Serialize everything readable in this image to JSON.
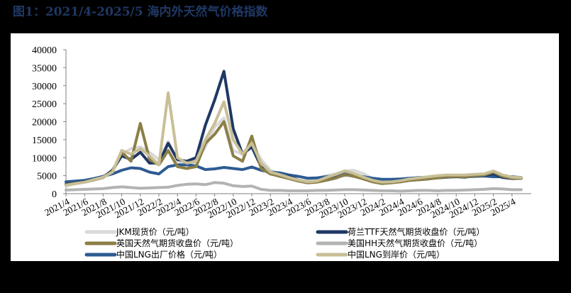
{
  "title": "图1：2021/4-2025/5 海内外天然气价格指数",
  "colors": {
    "background": "#000000",
    "panel": "#ffffff",
    "title": "#1f3864",
    "axis": "#808080"
  },
  "chart_data": {
    "type": "line",
    "title": "图1：2021/4-2025/5 海内外天然气价格指数",
    "xlabel": "",
    "ylabel": "元/吨",
    "ylim": [
      0,
      40000
    ],
    "yticks": [
      0,
      5000,
      10000,
      15000,
      20000,
      25000,
      30000,
      35000,
      40000
    ],
    "xtick_labels": [
      "2021/4",
      "2021/6",
      "2021/8",
      "2021/10",
      "2021/12",
      "2022/2",
      "2022/4",
      "2022/6",
      "2022/8",
      "2022/10",
      "2022/12",
      "2023/2",
      "2023/4",
      "2023/6",
      "2023/8",
      "2023/10",
      "2023/12",
      "2024/2",
      "2024/4",
      "2024/6",
      "2024/8",
      "2024/10",
      "2024/12",
      "2025/2",
      "2025/4"
    ],
    "grid": false,
    "legend_position": "bottom",
    "x": [
      "2021/4",
      "2021/5",
      "2021/6",
      "2021/7",
      "2021/8",
      "2021/9",
      "2021/10",
      "2021/11",
      "2021/12",
      "2022/1",
      "2022/2",
      "2022/3",
      "2022/4",
      "2022/5",
      "2022/6",
      "2022/7",
      "2022/8",
      "2022/9",
      "2022/10",
      "2022/11",
      "2022/12",
      "2023/1",
      "2023/2",
      "2023/3",
      "2023/4",
      "2023/5",
      "2023/6",
      "2023/7",
      "2023/8",
      "2023/9",
      "2023/10",
      "2023/11",
      "2023/12",
      "2024/1",
      "2024/2",
      "2024/3",
      "2024/4",
      "2024/5",
      "2024/6",
      "2024/7",
      "2024/8",
      "2024/9",
      "2024/10",
      "2024/11",
      "2024/12",
      "2025/1",
      "2025/2",
      "2025/3",
      "2025/4",
      "2025/5"
    ],
    "series": [
      {
        "name": "JKM现货价（元/吨）",
        "color": "#d9d9d9",
        "values": [
          2200,
          2700,
          3200,
          3800,
          4700,
          6000,
          11000,
          12500,
          13000,
          11500,
          9500,
          14500,
          9000,
          8200,
          8800,
          13000,
          18500,
          21000,
          12000,
          11000,
          14500,
          9500,
          6500,
          5500,
          4500,
          3800,
          3500,
          4300,
          5000,
          5500,
          6300,
          6500,
          5600,
          4200,
          3300,
          3200,
          3400,
          4000,
          4400,
          4600,
          4900,
          5100,
          5100,
          5000,
          5100,
          5000,
          5200,
          4600,
          4300,
          4300
        ]
      },
      {
        "name": "荷兰TTF天然气期货收盘价（元/吨）",
        "color": "#1f3864",
        "values": [
          2600,
          3000,
          3300,
          3900,
          4600,
          6500,
          10500,
          9500,
          11500,
          8500,
          8500,
          14000,
          9500,
          9000,
          10000,
          19000,
          26000,
          34000,
          18000,
          11000,
          13000,
          7500,
          5500,
          5000,
          4800,
          3800,
          3200,
          3300,
          3800,
          4400,
          5200,
          5000,
          4300,
          3500,
          3000,
          3100,
          3300,
          3700,
          3900,
          4100,
          4400,
          4600,
          4700,
          4600,
          5000,
          5100,
          5500,
          4500,
          4200,
          4300
        ]
      },
      {
        "name": "英国天然气期货收盘价（元/吨）",
        "color": "#8b7f47",
        "values": [
          2500,
          2900,
          3200,
          3800,
          4500,
          6200,
          11500,
          9000,
          19500,
          9500,
          8000,
          12000,
          7500,
          7000,
          7500,
          14000,
          16500,
          20000,
          10500,
          9000,
          16000,
          7000,
          5500,
          4800,
          4200,
          3500,
          3000,
          3200,
          3700,
          4300,
          5300,
          4800,
          4100,
          3300,
          2800,
          3000,
          3300,
          3700,
          3900,
          4100,
          4400,
          4700,
          4800,
          4700,
          5000,
          5200,
          6000,
          4800,
          4300,
          4300
        ]
      },
      {
        "name": "美国HH天然气期货收盘价（元/吨）",
        "color": "#b3b3b3",
        "values": [
          1000,
          1100,
          1200,
          1300,
          1400,
          1700,
          1900,
          1700,
          1500,
          1600,
          1700,
          1800,
          2300,
          2600,
          2700,
          2500,
          3100,
          2900,
          2200,
          2000,
          2100,
          1200,
          900,
          900,
          800,
          800,
          800,
          900,
          900,
          1000,
          1100,
          1100,
          1000,
          900,
          800,
          800,
          700,
          800,
          900,
          900,
          800,
          900,
          900,
          1000,
          1100,
          1200,
          1400,
          1300,
          1100,
          1100
        ]
      },
      {
        "name": "中国LNG出厂价格（元/吨）",
        "color": "#2e5b92",
        "values": [
          3300,
          3500,
          3700,
          4200,
          4800,
          5500,
          6500,
          7200,
          7000,
          6000,
          5500,
          7500,
          8000,
          8000,
          7700,
          6700,
          6900,
          7300,
          7000,
          6700,
          7400,
          6500,
          6000,
          5800,
          5200,
          4800,
          4300,
          4400,
          4700,
          5000,
          5500,
          5300,
          4700,
          4300,
          4000,
          4000,
          4100,
          4300,
          4500,
          4600,
          4700,
          4800,
          4800,
          4700,
          4800,
          4900,
          4700,
          4700,
          4700,
          4500
        ]
      },
      {
        "name": "中国LNG到岸价（元/吨）",
        "color": "#c9bf96",
        "values": [
          2300,
          2800,
          3200,
          3900,
          4600,
          6000,
          12000,
          11000,
          12500,
          10500,
          8000,
          28000,
          10000,
          8500,
          9000,
          15000,
          19500,
          25500,
          15000,
          11000,
          14000,
          8500,
          6000,
          5300,
          4500,
          3800,
          3300,
          3500,
          4500,
          5300,
          6300,
          5600,
          4600,
          3700,
          3200,
          3300,
          3600,
          4100,
          4400,
          4700,
          5000,
          5200,
          5200,
          5200,
          5400,
          5500,
          6300,
          5200,
          4600,
          4500
        ]
      }
    ]
  },
  "legend": [
    {
      "label": "JKM现货价（元/吨）",
      "color": "#d9d9d9"
    },
    {
      "label": "荷兰TTF天然气期货收盘价（元/吨）",
      "color": "#1f3864"
    },
    {
      "label": "英国天然气期货收盘价（元/吨）",
      "color": "#8b7f47"
    },
    {
      "label": "美国HH天然气期货收盘价（元/吨）",
      "color": "#b3b3b3"
    },
    {
      "label": "中国LNG出厂价格（元/吨）",
      "color": "#2e5b92"
    },
    {
      "label": "中国LNG到岸价（元/吨）",
      "color": "#c9bf96"
    }
  ]
}
